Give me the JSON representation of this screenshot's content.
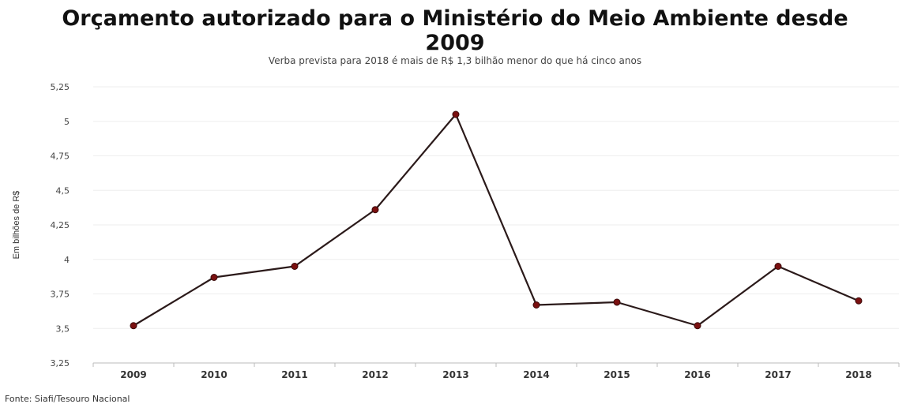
{
  "chart_data": {
    "type": "line",
    "title_line1": "Orçamento autorizado para o Ministério do Meio Ambiente desde",
    "title_line2": "2009",
    "subtitle": "Verba prevista para 2018 é mais de R$ 1,3 bilhão menor do que há cinco anos",
    "xlabel": "",
    "ylabel": "Em bilhões de R$",
    "categories": [
      "2009",
      "2010",
      "2011",
      "2012",
      "2013",
      "2014",
      "2015",
      "2016",
      "2017",
      "2018"
    ],
    "series": [
      {
        "values": [
          3.52,
          3.87,
          3.95,
          4.36,
          5.05,
          3.67,
          3.69,
          3.52,
          3.95,
          3.7
        ]
      }
    ],
    "ylim": [
      3.25,
      5.25
    ],
    "yticks": [
      3.25,
      3.5,
      3.75,
      4,
      4.25,
      4.5,
      4.75,
      5,
      5.25
    ],
    "ytick_labels": [
      "3,25",
      "3,5",
      "3,75",
      "4",
      "4,25",
      "4,5",
      "4,75",
      "5",
      "5,25"
    ],
    "grid": true,
    "line_color": "#2b1a1a",
    "marker_color": "#7a1010",
    "source": "Fonte: Siafi/Tesouro Nacional"
  }
}
